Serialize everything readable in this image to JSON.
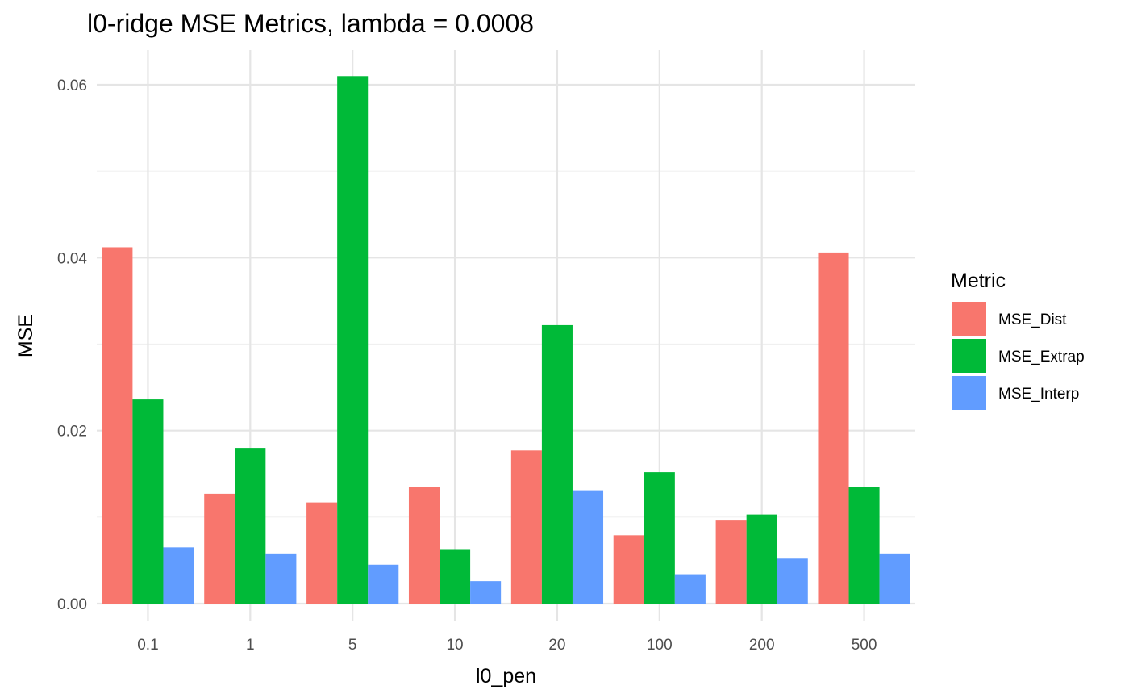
{
  "chart_data": {
    "type": "bar",
    "title": "l0-ridge MSE Metrics, lambda = 0.0008",
    "xlabel": "l0_pen",
    "ylabel": "MSE",
    "categories": [
      "0.1",
      "1",
      "5",
      "10",
      "20",
      "100",
      "200",
      "500"
    ],
    "series": [
      {
        "name": "MSE_Dist",
        "color": "#F8766D",
        "values": [
          0.0412,
          0.0127,
          0.0117,
          0.0135,
          0.0177,
          0.0079,
          0.0096,
          0.0406
        ]
      },
      {
        "name": "MSE_Extrap",
        "color": "#00BA38",
        "values": [
          0.0236,
          0.018,
          0.061,
          0.0063,
          0.0322,
          0.0152,
          0.0103,
          0.0135
        ]
      },
      {
        "name": "MSE_Interp",
        "color": "#619CFF",
        "values": [
          0.0065,
          0.0058,
          0.0045,
          0.0026,
          0.0131,
          0.0034,
          0.0052,
          0.0058
        ]
      }
    ],
    "ylim": [
      0,
      0.0645
    ],
    "yticks": [
      0.0,
      0.02,
      0.04,
      0.06
    ],
    "ytick_labels": [
      "0.00",
      "0.02",
      "0.04",
      "0.06"
    ],
    "grid": true,
    "legend": {
      "title": "Metric",
      "position": "right"
    }
  }
}
